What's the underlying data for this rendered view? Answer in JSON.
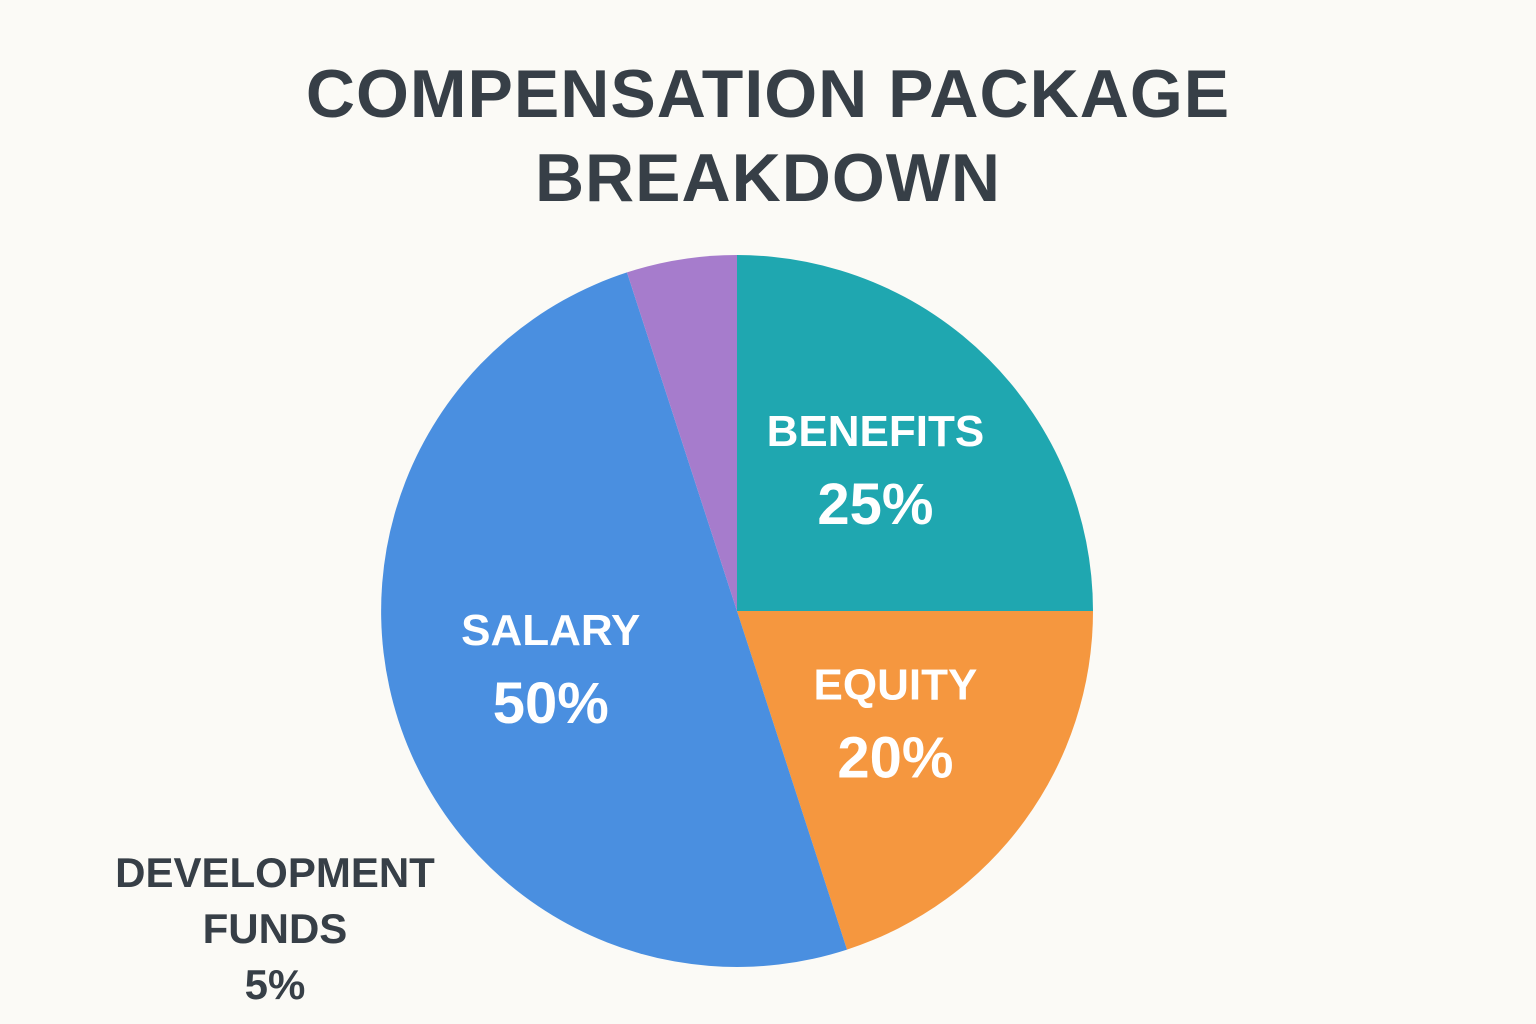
{
  "chart_data": {
    "type": "pie",
    "title": "COMPENSATION PACKAGE BREAKDOWN",
    "categories": [
      "BENEFITS",
      "EQUITY",
      "SALARY",
      "DEVELOPMENT FUNDS"
    ],
    "values": [
      25,
      20,
      50,
      5
    ],
    "value_labels": [
      "25%",
      "20%",
      "50%",
      "5%"
    ],
    "colors": [
      "#1fa7b0",
      "#f5973f",
      "#4a8fe0",
      "#a67ccc"
    ]
  }
}
